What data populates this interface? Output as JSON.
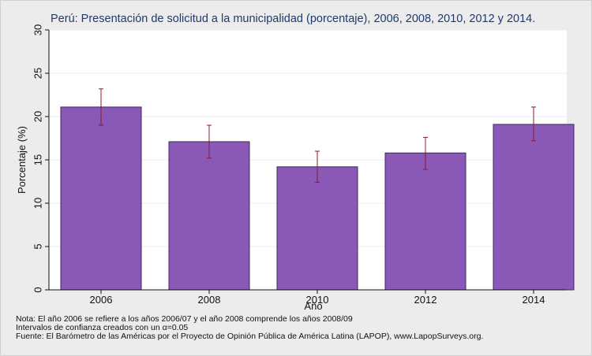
{
  "chart_data": {
    "type": "bar",
    "title": "Perú: Presentación de solicitud a la municipalidad (porcentaje), 2006, 2008, 2010, 2012 y 2014.",
    "xlabel": "Año",
    "ylabel": "Porcentaje (%)",
    "categories": [
      "2006",
      "2008",
      "2010",
      "2012",
      "2014"
    ],
    "values": [
      21.1,
      17.1,
      14.2,
      15.8,
      19.1
    ],
    "ci_lower": [
      19.0,
      15.2,
      12.4,
      13.9,
      17.2
    ],
    "ci_upper": [
      23.2,
      19.0,
      16.0,
      17.6,
      21.1
    ],
    "ylim": [
      0,
      30
    ],
    "yticks": [
      0,
      5,
      10,
      15,
      20,
      25,
      30
    ],
    "grid": true,
    "colors": {
      "bar": "#8a58b6",
      "bar_edge": "#3f2a5a",
      "error_bar": "#8b1c2a",
      "title": "#1f3a6e",
      "plot_bg": "#ffffff",
      "page_bg": "#ececec",
      "grid": "#ececec"
    }
  },
  "notes": [
    "Nota: El año 2006 se refiere a los años 2006/07 y el año 2008 comprende los años 2008/09",
    "Intervalos de confianza creados con un α=0.05",
    "Fuente: El Barómetro de las Américas por el Proyecto de Opinión Pública de América Latina (LAPOP), www.LapopSurveys.org."
  ]
}
